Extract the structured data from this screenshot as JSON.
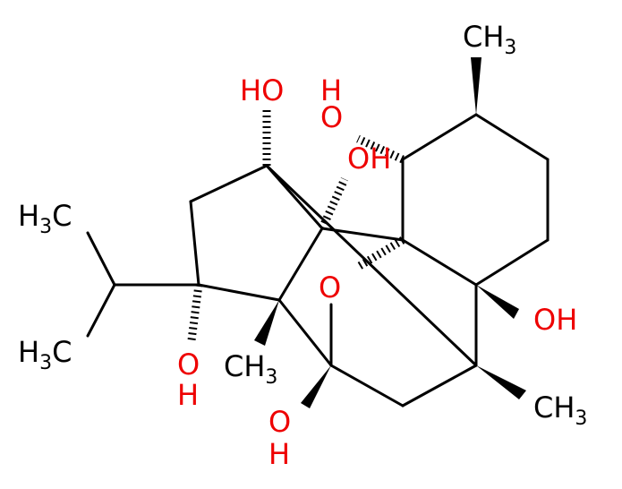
{
  "labels": [
    {
      "text": "CH",
      "sub": "3"
    },
    {
      "text": "HO"
    },
    {
      "text": "H"
    },
    {
      "text": "O"
    },
    {
      "text": "OH"
    },
    {
      "text": "H",
      "sub": "3",
      "tail": "C"
    },
    {
      "text": "O"
    },
    {
      "text": "OH"
    },
    {
      "text": "H",
      "sub": "3",
      "tail": "C"
    },
    {
      "text": "O"
    },
    {
      "text": "H"
    },
    {
      "text": "CH",
      "sub": "3"
    },
    {
      "text": "O"
    },
    {
      "text": "H"
    },
    {
      "text": "CH",
      "sub": "3"
    }
  ]
}
